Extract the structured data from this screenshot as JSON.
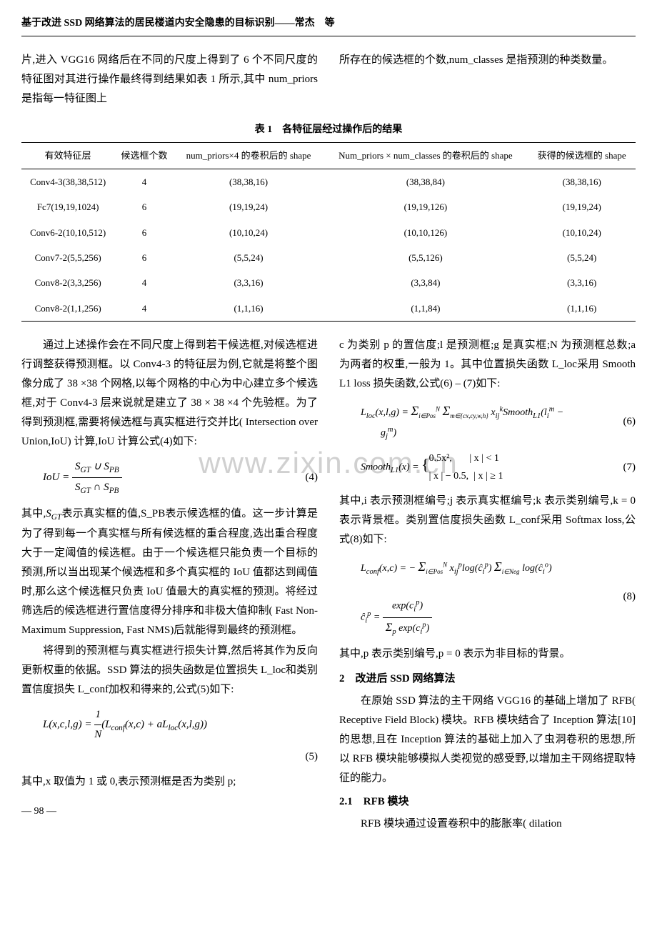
{
  "header": "基于改进 SSD 网络算法的居民楼道内安全隐患的目标识别——常杰　等",
  "watermark": "www.zixin.com.cn",
  "top_left": "片,进入 VGG16 网络后在不同的尺度上得到了 6 个不同尺度的特征图对其进行操作最终得到结果如表 1 所示,其中 num_priors 是指每一特征图上",
  "top_right": "所存在的候选框的个数,num_classes 是指预测的种类数量。",
  "table": {
    "caption": "表 1　各特征层经过操作后的结果",
    "headers": [
      "有效特征层",
      "候选框个数",
      "num_priors×4 的卷积后的 shape",
      "Num_priors × num_classes 的卷积后的 shape",
      "获得的候选框的 shape"
    ],
    "rows": [
      [
        "Conv4-3(38,38,512)",
        "4",
        "(38,38,16)",
        "(38,38,84)",
        "(38,38,16)"
      ],
      [
        "Fc7(19,19,1024)",
        "6",
        "(19,19,24)",
        "(19,19,126)",
        "(19,19,24)"
      ],
      [
        "Conv6-2(10,10,512)",
        "6",
        "(10,10,24)",
        "(10,10,126)",
        "(10,10,24)"
      ],
      [
        "Conv7-2(5,5,256)",
        "6",
        "(5,5,24)",
        "(5,5,126)",
        "(5,5,24)"
      ],
      [
        "Conv8-2(3,3,256)",
        "4",
        "(3,3,16)",
        "(3,3,84)",
        "(3,3,16)"
      ],
      [
        "Conv8-2(1,1,256)",
        "4",
        "(1,1,16)",
        "(1,1,84)",
        "(1,1,16)"
      ]
    ]
  },
  "left_col": {
    "p1": "通过上述操作会在不同尺度上得到若干候选框,对候选框进行调整获得预测框。以 Conv4-3 的特征层为例,它就是将整个图像分成了 38 ×38 个网格,以每个网格的中心为中心建立多个候选框,对于 Conv4-3 层来说就是建立了 38 × 38 ×4 个先验框。为了得到预测框,需要将候选框与真实框进行交并比( Intersection over Union,IoU) 计算,IoU 计算公式(4)如下:",
    "eq4_num": "(4)",
    "p2_pre": "其中,",
    "p2": "表示真实框的值,S_PB表示候选框的值。这一步计算是为了得到每一个真实框与所有候选框的重合程度,选出重合程度大于一定阈值的候选框。由于一个候选框只能负责一个目标的预测,所以当出现某个候选框和多个真实框的 IoU 值都达到阈值时,那么这个候选框只负责 IoU 值最大的真实框的预测。将经过筛选后的候选框进行置信度得分排序和非极大值抑制( Fast Non-Maximum Suppression, Fast NMS)后就能得到最终的预测框。",
    "p3": "将得到的预测框与真实框进行损失计算,然后将其作为反向更新权重的依据。SSD 算法的损失函数是位置损失 L_loc和类别置信度损失 L_conf加权和得来的,公式(5)如下:",
    "eq5_num": "(5)",
    "p4": "其中,x 取值为 1 或 0,表示预测框是否为类别 p;"
  },
  "right_col": {
    "p1": "c 为类别 p 的置信度;l 是预测框;g 是真实框;N 为预测框总数;a 为两者的权重,一般为 1。其中位置损失函数 L_loc采用 Smooth L1 loss 损失函数,公式(6) – (7)如下:",
    "eq6_num": "(6)",
    "eq7_num": "(7)",
    "p2": "其中,i 表示预测框编号;j 表示真实框编号;k 表示类别编号,k = 0 表示背景框。类别置信度损失函数 L_conf采用 Softmax loss,公式(8)如下:",
    "eq8_num": "(8)",
    "p3": "其中,p 表示类别编号,p = 0 表示为非目标的背景。",
    "sec2_title": "2　改进后 SSD 网络算法",
    "p4": "在原始 SSD 算法的主干网络 VGG16 的基础上增加了 RFB( Receptive Field Block) 模块。RFB 模块结合了 Inception 算法[10]的思想,且在 Inception 算法的基础上加入了虫洞卷积的思想,所以 RFB 模块能够模拟人类视觉的感受野,以增加主干网络提取特征的能力。",
    "sec21_title": "2.1　RFB 模块",
    "p5": "RFB 模块通过设置卷积中的膨胀率( dilation"
  },
  "page_num": "— 98 —",
  "formulas": {
    "eq4": "IoU = (S_GT ∪ S_PB) / (S_GT ∩ S_PB)",
    "eq5": "L(x,c,l,g) = (1/N)(L_conf(x,c) + aL_loc(x,l,g))",
    "eq6": "L_loc(x,l,g) = Σ_{i∈Pos}^N Σ_{m∈{cx,cy,w,h}} x_ij^k Smooth_L1(l_i^m − g_j^m)",
    "eq7": "Smooth_L1(x) = { 0.5x², |x|<1 ; |x|−0.5, |x|≥1 }",
    "eq8": "L_conf(x,c) = −Σ_{i∈Pos}^N x_ij^p log(ĉ_i^p) − Σ_{i∈Neg} log(ĉ_i^o), ĉ_i^p = exp(c_i^p)/Σ_p exp(c_i^p)"
  }
}
